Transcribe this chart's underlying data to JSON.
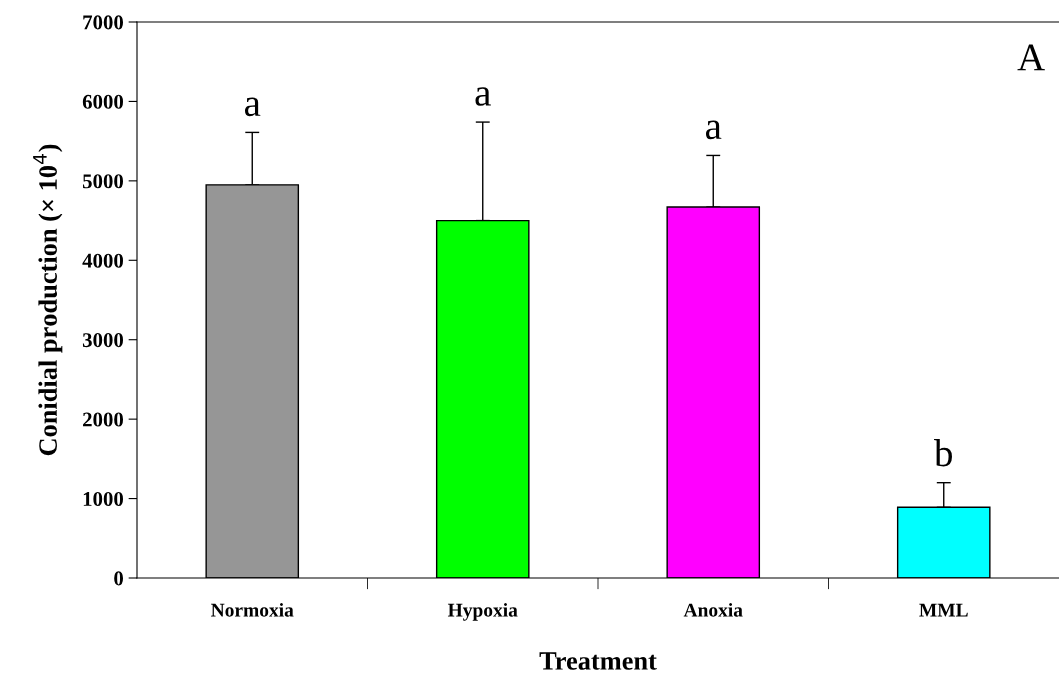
{
  "chart_data": {
    "type": "bar",
    "xlabel": "Treatment",
    "ylabel": "Conidial production (× 10$^{4}$)",
    "categories": [
      "Normoxia",
      "Hypoxia",
      "Anoxia",
      "MML"
    ],
    "values": [
      4950,
      4500,
      4670,
      890
    ],
    "errors": [
      [
        4950,
        5610
      ],
      [
        4500,
        5740
      ],
      [
        4670,
        5320
      ],
      [
        890,
        1200
      ]
    ],
    "colors": [
      "#969696",
      "#00ff00",
      "#ff00ff",
      "#00ffff"
    ],
    "ylim": [
      0,
      7000
    ],
    "yticks": [
      0,
      1000,
      2000,
      3000,
      4000,
      5000,
      6000,
      7000
    ],
    "grid": false,
    "legend": false,
    "annotations": [
      "a",
      "a",
      "a",
      "b",
      "A"
    ]
  }
}
